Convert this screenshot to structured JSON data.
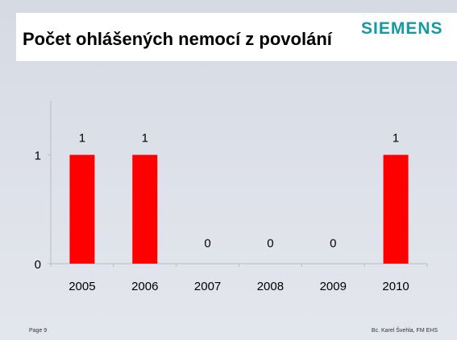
{
  "slide": {
    "title": "Počet ohlášených nemocí z povolání",
    "logo": "SIEMENS",
    "footer_left": "Page 9",
    "footer_right": "Bc. Karel Švehla, FM EHS"
  },
  "colors": {
    "bar": "#ff0000",
    "logo": "#159aa3",
    "axis": "#b8bcc6"
  },
  "chart_data": {
    "type": "bar",
    "title": "Počet ohlášených nemocí z povolání",
    "xlabel": "",
    "ylabel": "",
    "categories": [
      "2005",
      "2006",
      "2007",
      "2008",
      "2009",
      "2010"
    ],
    "values": [
      1,
      1,
      0,
      0,
      0,
      1
    ],
    "data_labels": [
      "1",
      "1",
      "0",
      "0",
      "0",
      "1"
    ],
    "yticks": [
      "0",
      "1"
    ],
    "ylim": [
      0,
      1.5
    ],
    "grid": false,
    "legend": "none"
  }
}
